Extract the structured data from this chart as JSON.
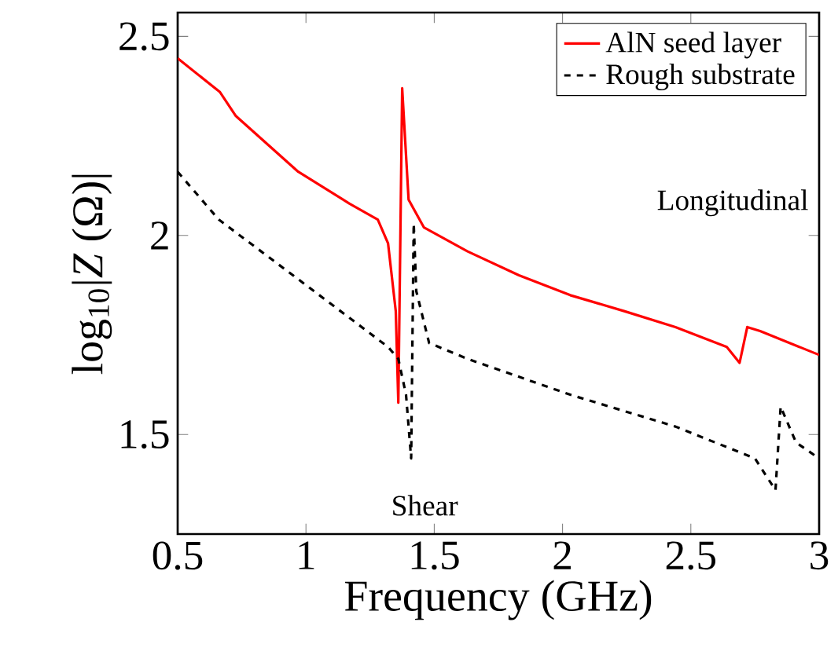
{
  "chart_data": {
    "type": "line",
    "xlabel": "Frequency (GHz)",
    "ylabel": "log$_{10}$|*Z* (Ω)|",
    "xlim": [
      0.5,
      3
    ],
    "ylim": [
      1.25,
      2.56
    ],
    "xticks": [
      0.5,
      1,
      1.5,
      2,
      2.5,
      3
    ],
    "yticks": [
      1.5,
      2,
      2.5
    ],
    "legend": "top right",
    "series": [
      {
        "name": "AlN seed layer",
        "color": "#ff0000",
        "line_style": "solid",
        "x": [
          0.5,
          0.665,
          0.727,
          0.97,
          1.17,
          1.28,
          1.32,
          1.35,
          1.36,
          1.375,
          1.4,
          1.46,
          1.63,
          1.83,
          2.03,
          2.24,
          2.44,
          2.64,
          2.69,
          2.72,
          2.77,
          3.0
        ],
        "values": [
          2.445,
          2.36,
          2.3,
          2.16,
          2.08,
          2.04,
          1.98,
          1.81,
          1.58,
          2.37,
          2.09,
          2.02,
          1.96,
          1.9,
          1.85,
          1.81,
          1.77,
          1.72,
          1.68,
          1.77,
          1.76,
          1.7
        ]
      },
      {
        "name": "Rough substrate",
        "color": "#000000",
        "line_style": "dashed",
        "x": [
          0.5,
          0.66,
          0.97,
          1.32,
          1.36,
          1.39,
          1.41,
          1.42,
          1.43,
          1.48,
          1.63,
          2.03,
          2.44,
          2.75,
          2.83,
          2.85,
          2.91,
          3.0
        ],
        "values": [
          2.16,
          2.04,
          1.89,
          1.72,
          1.69,
          1.6,
          1.44,
          2.03,
          1.86,
          1.73,
          1.69,
          1.6,
          1.52,
          1.44,
          1.36,
          1.57,
          1.48,
          1.44
        ]
      }
    ],
    "annotations": [
      "Shear",
      "Longitudinal"
    ]
  }
}
